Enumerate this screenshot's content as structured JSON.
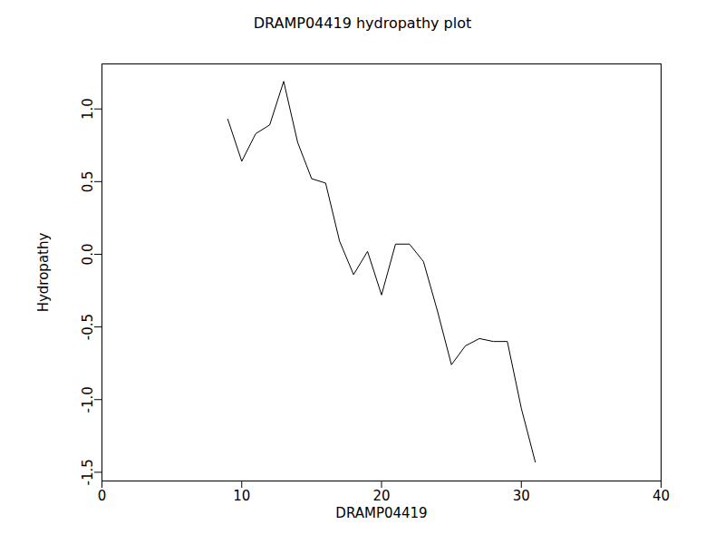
{
  "chart_data": {
    "type": "line",
    "title": "DRAMP04419 hydropathy plot",
    "x_label": "DRAMP04419",
    "y_label": "Hydropathy",
    "x": [
      9,
      10,
      11,
      12,
      13,
      14,
      15,
      16,
      17,
      18,
      19,
      20,
      21,
      22,
      23,
      24,
      25,
      26,
      27,
      28,
      29,
      30,
      31
    ],
    "values": [
      0.93,
      0.64,
      0.83,
      0.89,
      1.19,
      0.77,
      0.52,
      0.49,
      0.09,
      -0.14,
      0.02,
      -0.28,
      0.07,
      0.07,
      -0.05,
      -0.39,
      -0.76,
      -0.63,
      -0.58,
      -0.6,
      -0.6,
      -1.06,
      -1.43
    ],
    "color": "#000000",
    "xlim": [
      0,
      40
    ],
    "xticks": [
      0,
      10,
      20,
      30,
      40
    ],
    "ylim": [
      -1.56,
      1.31
    ],
    "yticks": [
      {
        "value": -1.5,
        "label": "-1.5"
      },
      {
        "value": -1,
        "label": "-1.0"
      },
      {
        "value": -0.5,
        "label": "-0.5"
      },
      {
        "value": 0,
        "label": "0.0"
      },
      {
        "value": 0.5,
        "label": "0.5"
      },
      {
        "value": 1,
        "label": "1.0"
      }
    ],
    "grid": false
  }
}
